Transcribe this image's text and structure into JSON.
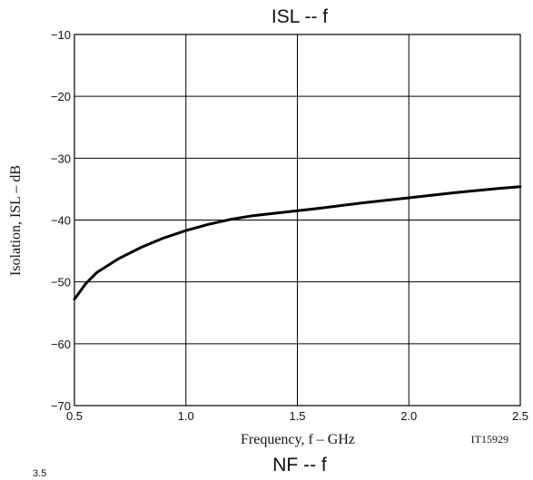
{
  "chart_data": {
    "type": "line",
    "title": "ISL  --  f",
    "xlabel": "Frequency, f  –  GHz",
    "ylabel": "Isolation, ISL  –  dB",
    "figure_code": "IT15929",
    "xlim": [
      0.5,
      2.5
    ],
    "ylim": [
      -70,
      -10
    ],
    "xticks": [
      "0.5",
      "1.0",
      "1.5",
      "2.0",
      "2.5"
    ],
    "yticks": [
      "−10",
      "−20",
      "−30",
      "−40",
      "−50",
      "−60",
      "−70"
    ],
    "grid": true,
    "series": [
      {
        "x": [
          0.5,
          0.55,
          0.6,
          0.7,
          0.8,
          0.9,
          1.0,
          1.1,
          1.2,
          1.3,
          1.4,
          1.5,
          1.6,
          1.8,
          2.0,
          2.2,
          2.4,
          2.5
        ],
        "y": [
          -52.8,
          -50.3,
          -48.5,
          -46.2,
          -44.4,
          -42.9,
          -41.7,
          -40.7,
          -39.9,
          -39.3,
          -38.9,
          -38.5,
          -38.1,
          -37.2,
          -36.4,
          -35.6,
          -34.9,
          -34.6
        ]
      }
    ]
  },
  "next_chart_title": "NF  --  f",
  "next_chart_top_tick": "3.5"
}
